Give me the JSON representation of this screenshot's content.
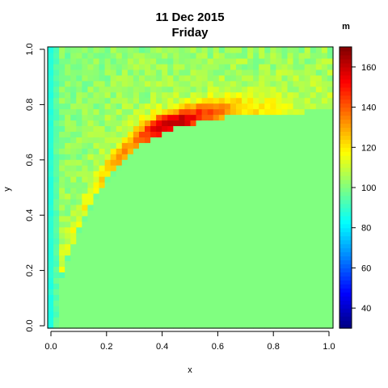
{
  "chart_data": {
    "type": "heatmap",
    "title": "11 Dec 2015",
    "subtitle": "Friday",
    "xlabel": "x",
    "ylabel": "y",
    "xlim": [
      0,
      1
    ],
    "ylim": [
      0,
      1
    ],
    "x_ticks": [
      "0.0",
      "0.2",
      "0.4",
      "0.6",
      "0.8",
      "1.0"
    ],
    "y_ticks": [
      "0.0",
      "0.2",
      "0.4",
      "0.6",
      "0.8",
      "1.0"
    ],
    "colorbar": {
      "unit": "m",
      "range": [
        30,
        170
      ],
      "ticks": [
        "40",
        "60",
        "80",
        "100",
        "120",
        "140",
        "160"
      ],
      "colormap": "jet"
    },
    "grid": {
      "nx": 50,
      "ny": 50
    },
    "background_value": 100,
    "peak_value": 160,
    "peak_location": [
      0.45,
      0.72
    ]
  }
}
